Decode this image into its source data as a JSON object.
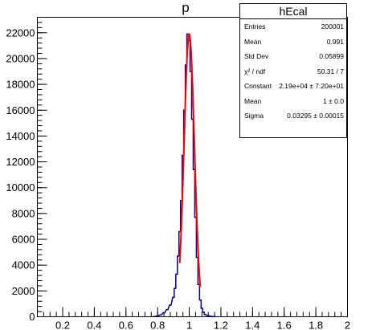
{
  "chart_data": {
    "type": "bar",
    "title": "p",
    "xlabel": "",
    "ylabel": "",
    "xlim": [
      0.04,
      2.0
    ],
    "ylim": [
      0,
      23200
    ],
    "x_ticks": [
      "0.2",
      "0.4",
      "0.6",
      "0.8",
      "1",
      "1.2",
      "1.4",
      "1.6",
      "1.8",
      "2"
    ],
    "y_ticks": [
      "0",
      "2000",
      "4000",
      "6000",
      "8000",
      "10000",
      "12000",
      "14000",
      "16000",
      "18000",
      "20000",
      "22000"
    ],
    "histogram": {
      "bin_width": 0.01,
      "x": [
        0.78,
        0.8,
        0.82,
        0.84,
        0.86,
        0.88,
        0.9,
        0.91,
        0.92,
        0.93,
        0.94,
        0.95,
        0.96,
        0.97,
        0.98,
        0.99,
        1.0,
        1.01,
        1.02,
        1.03,
        1.04,
        1.05,
        1.06,
        1.07,
        1.08,
        1.09,
        1.1,
        1.12,
        1.14,
        1.16
      ],
      "values": [
        20,
        60,
        150,
        300,
        550,
        900,
        1500,
        2200,
        3300,
        4700,
        6600,
        9000,
        12500,
        16000,
        19500,
        21900,
        21400,
        19000,
        15300,
        11400,
        7700,
        4600,
        2500,
        1300,
        650,
        350,
        170,
        70,
        30,
        10
      ],
      "color": "#00008b"
    },
    "fit": {
      "function": "gaus",
      "constant": 21900,
      "mean": 1.0,
      "sigma": 0.03295,
      "x_range": [
        0.94,
        1.07
      ],
      "color": "#ff0000"
    },
    "stats": {
      "title": "hEcal",
      "rows": [
        {
          "label": "Entries",
          "value": "200001"
        },
        {
          "label": "Mean",
          "value": "0.991"
        },
        {
          "label": "Std Dev",
          "value": "0.05899"
        },
        {
          "label": "χ² / ndf",
          "value": "50.31 / 7"
        },
        {
          "label": "Constant",
          "value": "2.19e+04 ± 7.20e+01"
        },
        {
          "label": "Mean",
          "value": "1 ± 0.0"
        },
        {
          "label": "Sigma",
          "value": "0.03295 ± 0.00015"
        }
      ]
    }
  }
}
